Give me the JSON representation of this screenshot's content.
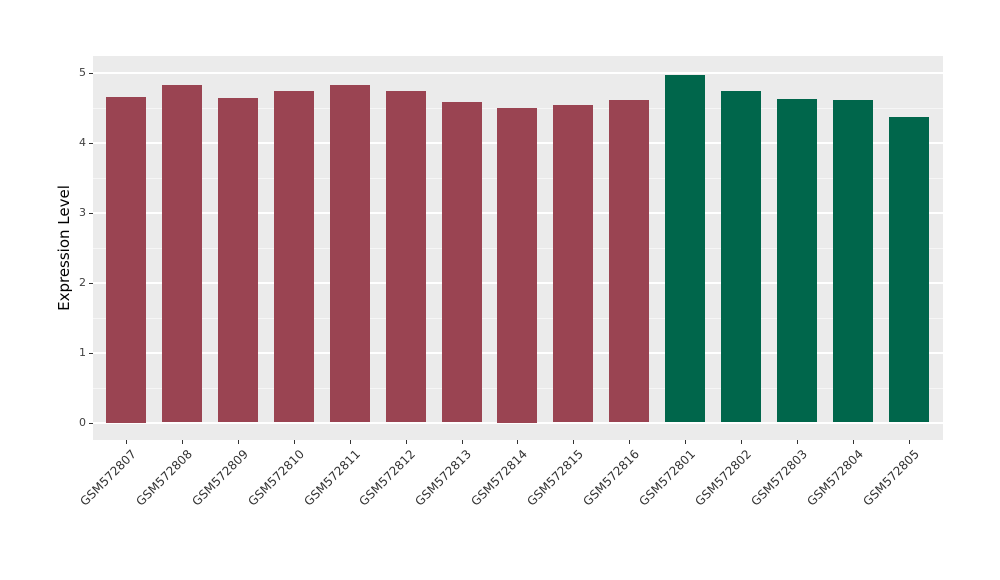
{
  "chart_data": {
    "type": "bar",
    "title": "",
    "xlabel": "",
    "ylabel": "Expression Level",
    "ylim": [
      0,
      5.22
    ],
    "yticks": [
      0,
      1,
      2,
      3,
      4,
      5
    ],
    "grid": "on",
    "legend": "none",
    "categories": [
      "GSM572807",
      "GSM572808",
      "GSM572809",
      "GSM572810",
      "GSM572811",
      "GSM572812",
      "GSM572813",
      "GSM572814",
      "GSM572815",
      "GSM572816",
      "GSM572801",
      "GSM572802",
      "GSM572803",
      "GSM572804",
      "GSM572805"
    ],
    "values": [
      4.65,
      4.82,
      4.64,
      4.73,
      4.82,
      4.73,
      4.58,
      4.5,
      4.54,
      4.61,
      4.97,
      4.73,
      4.62,
      4.61,
      4.37
    ],
    "bar_groups": [
      "red",
      "red",
      "red",
      "red",
      "red",
      "red",
      "red",
      "red",
      "red",
      "red",
      "green",
      "green",
      "green",
      "green",
      "green"
    ],
    "colors": {
      "red": "#9A4452",
      "green": "#00664B",
      "panel_background": "#EBEBEB",
      "gridline": "#FFFFFF",
      "tick_mark": "#333333",
      "tick_label": "#404040",
      "axis_title": "#000000"
    },
    "x_label_rotation_deg": 45
  }
}
